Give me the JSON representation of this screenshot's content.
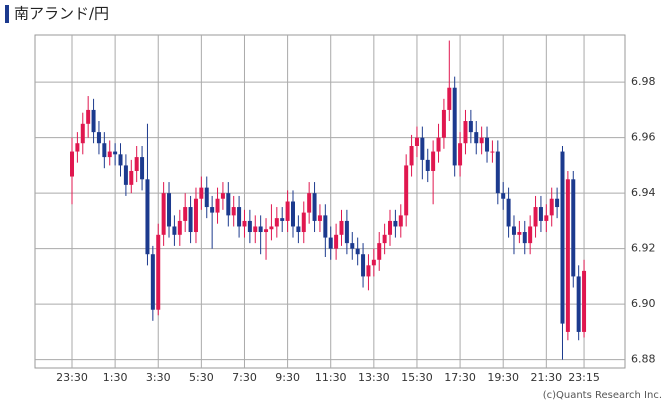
{
  "chart_data": {
    "type": "candlestick",
    "title": "南アランド/円",
    "copyright": "(c)Quants Research Inc.",
    "categories": [
      "23:30",
      null,
      null,
      null,
      null,
      null,
      null,
      null,
      "1:30",
      null,
      null,
      null,
      null,
      null,
      null,
      null,
      "3:30",
      null,
      null,
      null,
      null,
      null,
      null,
      null,
      "5:30",
      null,
      null,
      null,
      null,
      null,
      null,
      null,
      "7:30",
      null,
      null,
      null,
      null,
      null,
      null,
      null,
      "9:30",
      null,
      null,
      null,
      null,
      null,
      null,
      null,
      "11:30",
      null,
      null,
      null,
      null,
      null,
      null,
      null,
      "13:30",
      null,
      null,
      null,
      null,
      null,
      null,
      null,
      "15:30",
      null,
      null,
      null,
      null,
      null,
      null,
      null,
      "17:30",
      null,
      null,
      null,
      null,
      null,
      null,
      null,
      "19:30",
      null,
      null,
      null,
      null,
      null,
      null,
      null,
      "21:30",
      null,
      null,
      null,
      null,
      null,
      null,
      "23:15"
    ],
    "open": [
      6.946,
      6.955,
      6.958,
      6.965,
      6.97,
      6.962,
      6.958,
      6.953,
      6.955,
      6.954,
      6.95,
      6.943,
      6.948,
      6.953,
      6.945,
      6.918,
      6.898,
      6.925,
      6.94,
      6.928,
      6.925,
      6.93,
      6.935,
      6.926,
      6.938,
      6.942,
      6.935,
      6.933,
      6.938,
      6.94,
      6.932,
      6.935,
      6.928,
      6.93,
      6.926,
      6.928,
      6.926,
      6.927,
      6.928,
      6.931,
      6.93,
      6.937,
      6.928,
      6.926,
      6.933,
      6.94,
      6.93,
      6.932,
      6.924,
      6.92,
      6.925,
      6.93,
      6.922,
      6.92,
      6.918,
      6.91,
      6.914,
      6.916,
      6.922,
      6.925,
      6.93,
      6.928,
      6.932,
      6.95,
      6.957,
      6.96,
      6.952,
      6.948,
      6.955,
      6.96,
      6.97,
      6.978,
      6.95,
      6.958,
      6.966,
      6.962,
      6.958,
      6.96,
      6.955,
      6.955,
      6.94,
      6.938,
      6.928,
      6.925,
      6.926,
      6.922,
      6.928,
      6.935,
      6.93,
      6.932,
      6.938,
      6.955,
      6.89,
      6.945,
      6.91,
      6.89
    ],
    "high": [
      6.96,
      6.962,
      6.969,
      6.975,
      6.974,
      6.966,
      6.962,
      6.959,
      6.958,
      6.958,
      6.954,
      6.952,
      6.957,
      6.957,
      6.965,
      6.921,
      6.929,
      6.944,
      6.944,
      6.932,
      6.934,
      6.94,
      6.939,
      6.942,
      6.946,
      6.946,
      6.939,
      6.942,
      6.944,
      6.944,
      6.939,
      6.939,
      6.934,
      6.934,
      6.932,
      6.932,
      6.931,
      6.936,
      6.935,
      6.935,
      6.941,
      6.941,
      6.932,
      6.937,
      6.944,
      6.944,
      6.936,
      6.936,
      6.928,
      6.929,
      6.934,
      6.934,
      6.926,
      6.924,
      6.922,
      6.918,
      6.92,
      6.926,
      6.929,
      6.934,
      6.934,
      6.936,
      6.954,
      6.961,
      6.964,
      6.964,
      6.956,
      6.959,
      6.965,
      6.974,
      6.995,
      6.982,
      6.962,
      6.97,
      6.97,
      6.966,
      6.964,
      6.964,
      6.959,
      6.959,
      6.944,
      6.942,
      6.932,
      6.93,
      6.93,
      6.932,
      6.939,
      6.939,
      6.936,
      6.942,
      6.942,
      6.957,
      6.948,
      6.948,
      6.914,
      6.916
    ],
    "low": [
      6.936,
      6.951,
      6.954,
      6.96,
      6.958,
      6.954,
      6.949,
      6.95,
      6.95,
      6.946,
      6.939,
      6.94,
      6.944,
      6.941,
      6.914,
      6.894,
      6.896,
      6.921,
      6.924,
      6.921,
      6.921,
      6.926,
      6.922,
      6.922,
      6.934,
      6.931,
      6.92,
      6.929,
      6.934,
      6.928,
      6.928,
      6.924,
      6.924,
      6.922,
      6.922,
      6.918,
      6.916,
      6.923,
      6.924,
      6.926,
      6.926,
      6.924,
      6.922,
      6.922,
      6.929,
      6.926,
      6.926,
      6.917,
      6.916,
      6.916,
      6.921,
      6.918,
      6.916,
      6.914,
      6.906,
      6.905,
      6.91,
      6.912,
      6.918,
      6.921,
      6.924,
      6.924,
      6.928,
      6.946,
      6.953,
      6.945,
      6.944,
      6.936,
      6.951,
      6.956,
      6.966,
      6.946,
      6.946,
      6.954,
      6.958,
      6.954,
      6.954,
      6.951,
      6.951,
      6.936,
      6.934,
      6.924,
      6.918,
      6.922,
      6.918,
      6.918,
      6.924,
      6.926,
      6.926,
      6.928,
      6.931,
      6.88,
      6.887,
      6.906,
      6.887,
      6.888
    ],
    "close": [
      6.955,
      6.958,
      6.965,
      6.97,
      6.962,
      6.958,
      6.953,
      6.955,
      6.954,
      6.95,
      6.943,
      6.948,
      6.953,
      6.945,
      6.918,
      6.898,
      6.925,
      6.94,
      6.928,
      6.925,
      6.93,
      6.935,
      6.926,
      6.938,
      6.942,
      6.935,
      6.933,
      6.938,
      6.94,
      6.932,
      6.935,
      6.928,
      6.93,
      6.926,
      6.928,
      6.926,
      6.927,
      6.928,
      6.931,
      6.93,
      6.937,
      6.928,
      6.926,
      6.933,
      6.94,
      6.93,
      6.932,
      6.924,
      6.92,
      6.925,
      6.93,
      6.922,
      6.92,
      6.918,
      6.91,
      6.914,
      6.916,
      6.922,
      6.925,
      6.93,
      6.928,
      6.932,
      6.95,
      6.957,
      6.96,
      6.952,
      6.948,
      6.955,
      6.96,
      6.97,
      6.978,
      6.95,
      6.958,
      6.966,
      6.962,
      6.958,
      6.96,
      6.955,
      6.955,
      6.94,
      6.938,
      6.928,
      6.925,
      6.926,
      6.922,
      6.928,
      6.935,
      6.93,
      6.932,
      6.938,
      6.935,
      6.893,
      6.945,
      6.91,
      6.89,
      6.912
    ],
    "up_color": "#e0174f",
    "down_color": "#1c3a8e",
    "ylim": [
      6.877,
      6.997
    ],
    "yticks": [
      6.88,
      {
        "value": 6.9,
        "label": "6.90"
      },
      6.92,
      6.94,
      6.96,
      6.98
    ],
    "grid": true
  }
}
